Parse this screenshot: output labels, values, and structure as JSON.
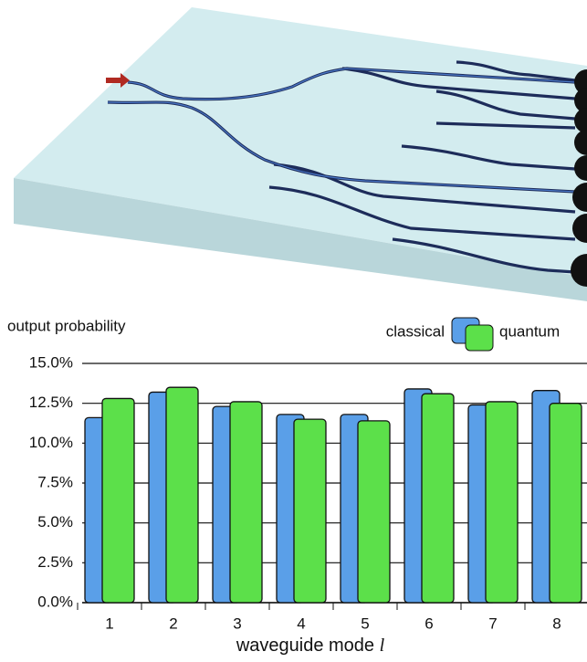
{
  "chart_data": {
    "type": "bar",
    "y_label": "output probability",
    "x_label": "waveguide mode",
    "x_label_symbol": "l",
    "categories": [
      "1",
      "2",
      "3",
      "4",
      "5",
      "6",
      "7",
      "8"
    ],
    "series": [
      {
        "name": "classical",
        "color": "#5a9fe8",
        "values": [
          11.6,
          13.2,
          12.3,
          11.8,
          11.8,
          13.4,
          12.4,
          13.3
        ]
      },
      {
        "name": "quantum",
        "color": "#5ce04a",
        "values": [
          12.8,
          13.5,
          12.6,
          11.5,
          11.4,
          13.1,
          12.6,
          12.5
        ]
      }
    ],
    "ylim": [
      0,
      15
    ],
    "yticks": [
      {
        "value": 0,
        "label": "0.0%"
      },
      {
        "value": 2.5,
        "label": "2.5%"
      },
      {
        "value": 5,
        "label": "5.0%"
      },
      {
        "value": 7.5,
        "label": "7.5%"
      },
      {
        "value": 10,
        "label": "10.0%"
      },
      {
        "value": 12.5,
        "label": "12.5%"
      },
      {
        "value": 15,
        "label": "15.0%"
      }
    ],
    "grid": true,
    "legend": "top-right"
  }
}
